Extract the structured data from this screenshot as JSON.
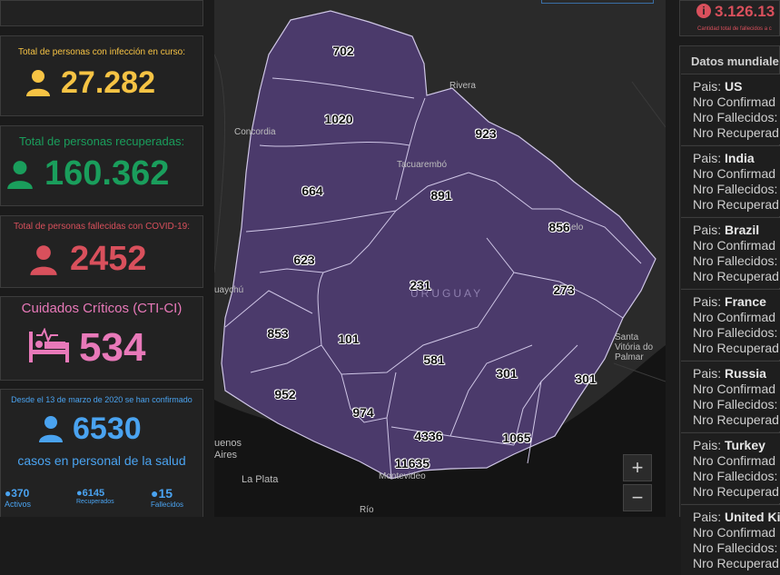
{
  "colors": {
    "infection": "#f6c344",
    "recovered": "#1a9e5c",
    "deceased": "#d9505c",
    "critical": "#e879b9",
    "health": "#4aa3f0",
    "region_fill": "#4b3a6b"
  },
  "cards": {
    "infection": {
      "caption": "Total de personas con infección en curso:",
      "value": "27.282",
      "icon": "person-icon"
    },
    "recovered": {
      "caption": "Total de personas recuperadas:",
      "value": "160.362",
      "icon": "person-icon"
    },
    "deceased": {
      "caption": "Total de personas fallecidas con COVID-19:",
      "value": "2452",
      "icon": "person-icon"
    },
    "critical": {
      "caption": "Cuidados Críticos (CTI-CI)",
      "value": "534",
      "icon": "hospital-bed-icon"
    },
    "health": {
      "caption": "Desde el 13 de marzo de 2020 se han confirmado",
      "value": "6530",
      "sub": "casos en personal de la salud",
      "stats": [
        {
          "value": "370",
          "label": "Activos"
        },
        {
          "value": "6145",
          "label": "Recuperados"
        },
        {
          "value": "15",
          "label": "Fallecidos"
        }
      ]
    }
  },
  "map": {
    "regions": [
      {
        "label": "702"
      },
      {
        "label": "1020"
      },
      {
        "label": "923"
      },
      {
        "label": "664"
      },
      {
        "label": "891"
      },
      {
        "label": "856"
      },
      {
        "label": "623"
      },
      {
        "label": "231"
      },
      {
        "label": "273"
      },
      {
        "label": "853"
      },
      {
        "label": "101"
      },
      {
        "label": "581"
      },
      {
        "label": "301"
      },
      {
        "label": "301"
      },
      {
        "label": "952"
      },
      {
        "label": "974"
      },
      {
        "label": "4336"
      },
      {
        "label": "1065"
      },
      {
        "label": "11635"
      }
    ],
    "places": [
      "Rivera",
      "Concordia",
      "Tacuarembó",
      "URUGUAY",
      "uaychú",
      "Santa Vitória do Palmar",
      "uenos Aires",
      "La Plata",
      "Montevideo",
      "Río",
      "elo"
    ],
    "zoom_in": "+",
    "zoom_out": "−"
  },
  "right": {
    "top_value": "3.126.13",
    "top_caption": "Cantidad total de fallecidos a c",
    "world_title": "Datos mundiale",
    "country_prefix": "Pais: ",
    "row_labels": [
      "Nro Confirmad",
      "Nro Fallecidos:",
      "Nro Recuperad"
    ],
    "countries": [
      "US",
      "India",
      "Brazil",
      "France",
      "Russia",
      "Turkey",
      "United Ki"
    ]
  }
}
